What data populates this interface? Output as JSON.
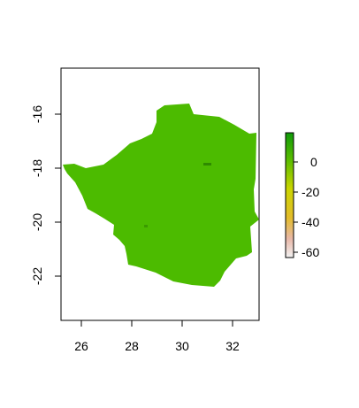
{
  "map": {
    "x_ticks": [
      "26",
      "28",
      "30",
      "32"
    ],
    "y_ticks": [
      "-16",
      "-18",
      "-20",
      "-22"
    ],
    "xlim": [
      25.3,
      33.2
    ],
    "ylim": [
      -23.7,
      -14.6
    ],
    "land_color": "#4cbb00",
    "dark_patch_color": "#2f8a00",
    "frame_color": "#000000"
  },
  "legend": {
    "labels": [
      "0",
      "-20",
      "-40",
      "-60"
    ],
    "values": [
      0,
      -20,
      -40,
      -60
    ],
    "range": [
      -73,
      6
    ],
    "gradient_colors": [
      "#f2f2f2",
      "#e8b8a8",
      "#e3bc2a",
      "#cbd500",
      "#5bbd00",
      "#0f9a08"
    ]
  }
}
